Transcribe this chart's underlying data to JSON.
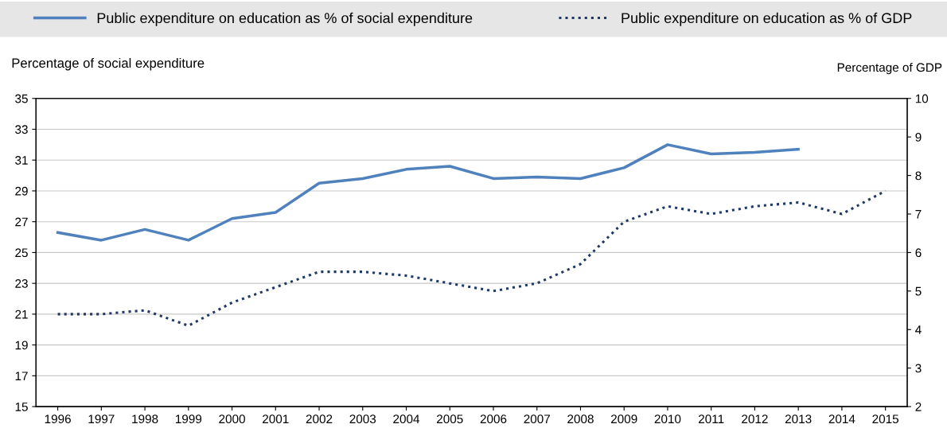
{
  "chart_data": {
    "type": "line",
    "categories": [
      "1996",
      "1997",
      "1998",
      "1999",
      "2000",
      "2001",
      "2002",
      "2003",
      "2004",
      "2005",
      "2006",
      "2007",
      "2008",
      "2009",
      "2010",
      "2011",
      "2012",
      "2013",
      "2014",
      "2015"
    ],
    "series": [
      {
        "name": "Public expenditure on education as % of social expenditure",
        "color": "#4f81bd",
        "line_style": "solid",
        "values": [
          26.3,
          25.8,
          26.5,
          25.8,
          27.2,
          27.6,
          29.5,
          29.8,
          30.4,
          30.6,
          29.8,
          29.9,
          29.8,
          30.5,
          32.0,
          31.4,
          31.5,
          31.7,
          null,
          null
        ]
      },
      {
        "name": "Public expenditure on education as % of GDP",
        "color": "#1f3864",
        "line_style": "dotted",
        "axis": "y2",
        "values": [
          4.4,
          4.4,
          4.5,
          4.1,
          4.7,
          5.1,
          5.5,
          5.5,
          5.4,
          5.2,
          5.0,
          5.2,
          5.7,
          6.8,
          7.2,
          7.0,
          7.2,
          7.3,
          7.0,
          7.6
        ]
      }
    ],
    "ylabel": "Percentage of social expenditure",
    "y2label": "Percentage of GDP",
    "ylim": [
      15,
      35
    ],
    "yticks": [
      15,
      17,
      19,
      21,
      23,
      25,
      27,
      29,
      31,
      33,
      35
    ],
    "y2lim": [
      2,
      10
    ],
    "y2ticks": [
      2,
      3,
      4,
      5,
      6,
      7,
      8,
      9,
      10
    ],
    "grid": "y",
    "legend": "top",
    "marker": "none"
  }
}
